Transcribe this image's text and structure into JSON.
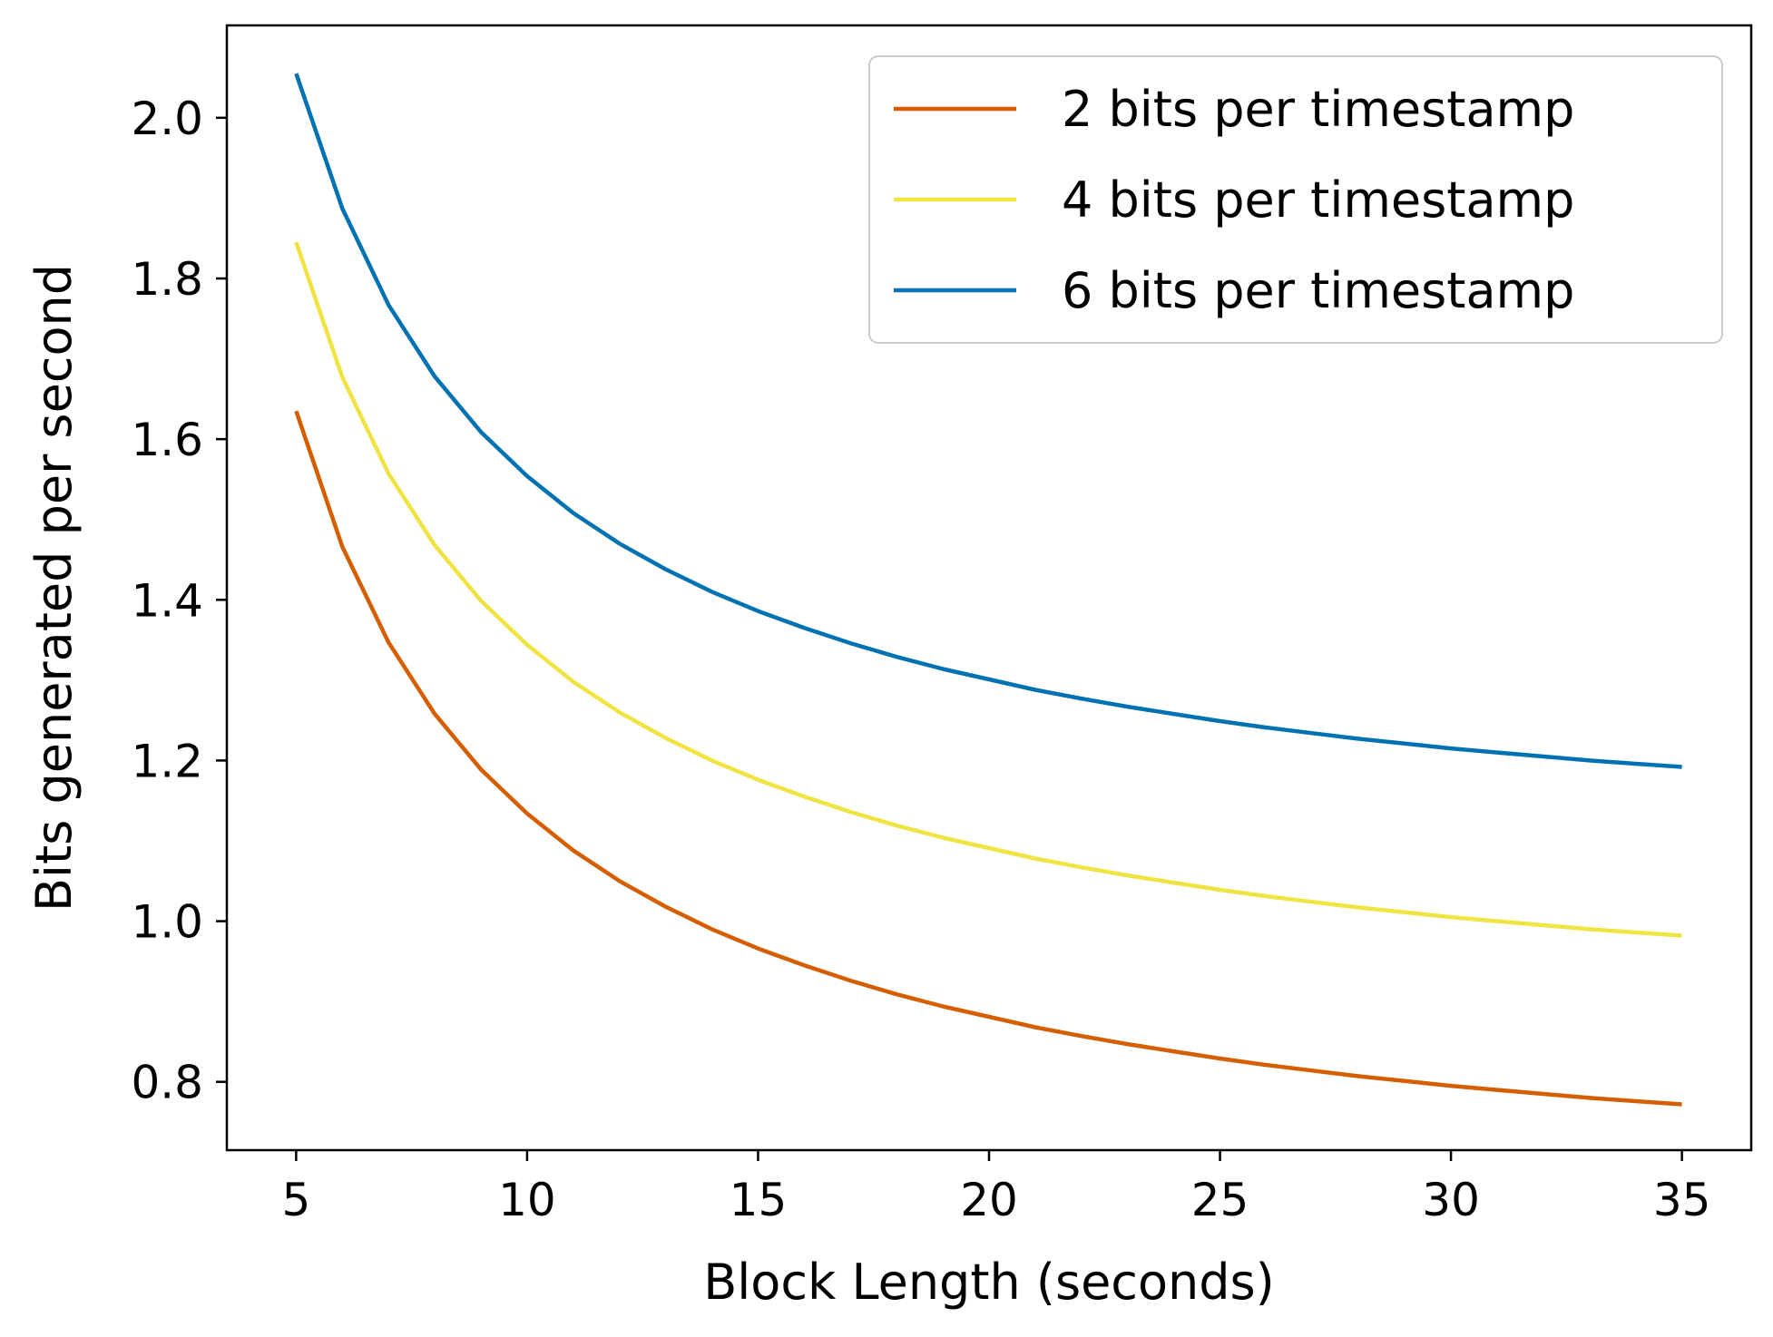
{
  "chart_data": {
    "type": "line",
    "xlabel": "Block Length (seconds)",
    "ylabel": "Bits generated per second",
    "xlim": [
      3.5,
      36.5
    ],
    "ylim": [
      0.715,
      2.115
    ],
    "xticks": [
      5,
      10,
      15,
      20,
      25,
      30,
      35
    ],
    "xtick_labels": [
      "5",
      "10",
      "15",
      "20",
      "25",
      "30",
      "35"
    ],
    "yticks": [
      0.8,
      1.0,
      1.2,
      1.4,
      1.6,
      1.8,
      2.0
    ],
    "ytick_labels": [
      "0.8",
      "1.0",
      "1.2",
      "1.4",
      "1.6",
      "1.8",
      "2.0"
    ],
    "grid": false,
    "legend_position": "top-right",
    "x": [
      5,
      6,
      7,
      8,
      9,
      10,
      11,
      12,
      13,
      14,
      15,
      16,
      17,
      18,
      19,
      20,
      21,
      22,
      23,
      24,
      25,
      26,
      27,
      28,
      29,
      30,
      31,
      32,
      33,
      34,
      35
    ],
    "series": [
      {
        "name": "2 bits per timestamp",
        "color": "#d55e00",
        "values": [
          1.635,
          1.466,
          1.347,
          1.258,
          1.189,
          1.134,
          1.088,
          1.05,
          1.018,
          0.99,
          0.966,
          0.945,
          0.926,
          0.909,
          0.894,
          0.881,
          0.868,
          0.857,
          0.847,
          0.838,
          0.829,
          0.821,
          0.814,
          0.807,
          0.801,
          0.795,
          0.79,
          0.785,
          0.78,
          0.776,
          0.772
        ]
      },
      {
        "name": "4 bits per timestamp",
        "color": "#f0e442",
        "values": [
          1.845,
          1.677,
          1.557,
          1.468,
          1.399,
          1.344,
          1.298,
          1.26,
          1.228,
          1.2,
          1.176,
          1.155,
          1.136,
          1.119,
          1.104,
          1.091,
          1.078,
          1.067,
          1.057,
          1.048,
          1.039,
          1.031,
          1.024,
          1.017,
          1.011,
          1.005,
          1.0,
          0.995,
          0.99,
          0.986,
          0.982
        ]
      },
      {
        "name": "6 bits per timestamp",
        "color": "#0072b2",
        "values": [
          2.055,
          1.887,
          1.767,
          1.678,
          1.609,
          1.554,
          1.508,
          1.47,
          1.438,
          1.41,
          1.386,
          1.365,
          1.346,
          1.329,
          1.314,
          1.301,
          1.288,
          1.277,
          1.267,
          1.258,
          1.249,
          1.241,
          1.234,
          1.227,
          1.221,
          1.215,
          1.21,
          1.205,
          1.2,
          1.196,
          1.192
        ]
      }
    ]
  }
}
